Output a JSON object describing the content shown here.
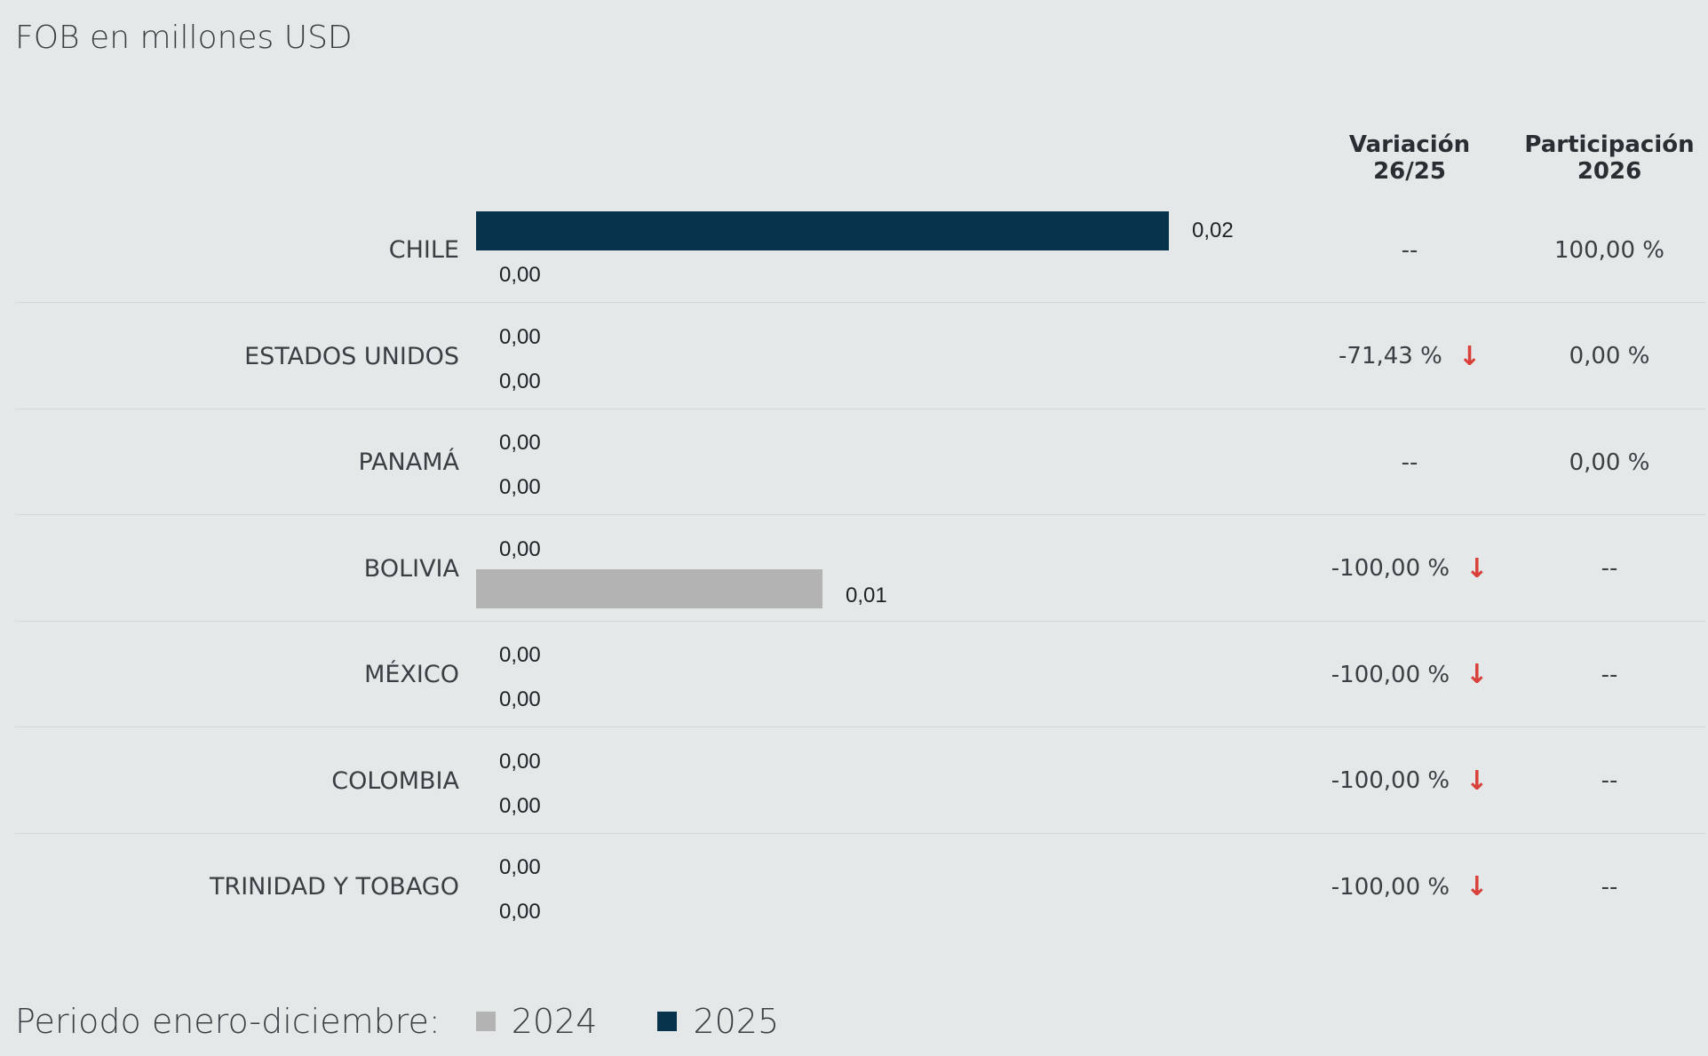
{
  "subtitle": "FOB en millones USD",
  "columns": {
    "variacion": "Variación 26/25",
    "variacion_l1": "Variación",
    "variacion_l2": "26/25",
    "participacion": "Participación 2026",
    "participacion_l1": "Participación",
    "participacion_l2": "2026"
  },
  "colors": {
    "series_2025": "#07334d",
    "series_2024": "#b3b3b3",
    "down_arrow": "#d9403a"
  },
  "icons": {
    "down": "arrow-down-icon"
  },
  "legend": {
    "label": "Periodo enero-diciembre:",
    "items": [
      "2024",
      "2025"
    ]
  },
  "chart_data": {
    "type": "bar",
    "orientation": "horizontal",
    "categories": [
      "CHILE",
      "ESTADOS UNIDOS",
      "PANAMÁ",
      "BOLIVIA",
      "MÉXICO",
      "COLOMBIA",
      "TRINIDAD Y TOBAGO"
    ],
    "series": [
      {
        "name": "2025",
        "values": [
          0.02,
          0.0,
          0.0,
          0.0,
          0.0,
          0.0,
          0.0
        ],
        "labels": [
          "0,02",
          "0,00",
          "0,00",
          "0,00",
          "0,00",
          "0,00",
          "0,00"
        ]
      },
      {
        "name": "2024",
        "values": [
          0.0,
          0.0,
          0.0,
          0.01,
          0.0,
          0.0,
          0.0
        ],
        "labels": [
          "0,00",
          "0,00",
          "0,00",
          "0,01",
          "0,00",
          "0,00",
          "0,00"
        ]
      }
    ],
    "xlim": [
      0,
      0.02
    ],
    "variacion": [
      "--",
      "-71,43 %",
      "--",
      "-100,00 %",
      "-100,00 %",
      "-100,00 %",
      "-100,00 %"
    ],
    "variacion_down": [
      false,
      true,
      false,
      true,
      true,
      true,
      true
    ],
    "participacion": [
      "100,00 %",
      "0,00 %",
      "0,00 %",
      "--",
      "--",
      "--",
      "--"
    ],
    "legend_position": "bottom-left",
    "grid": false
  }
}
